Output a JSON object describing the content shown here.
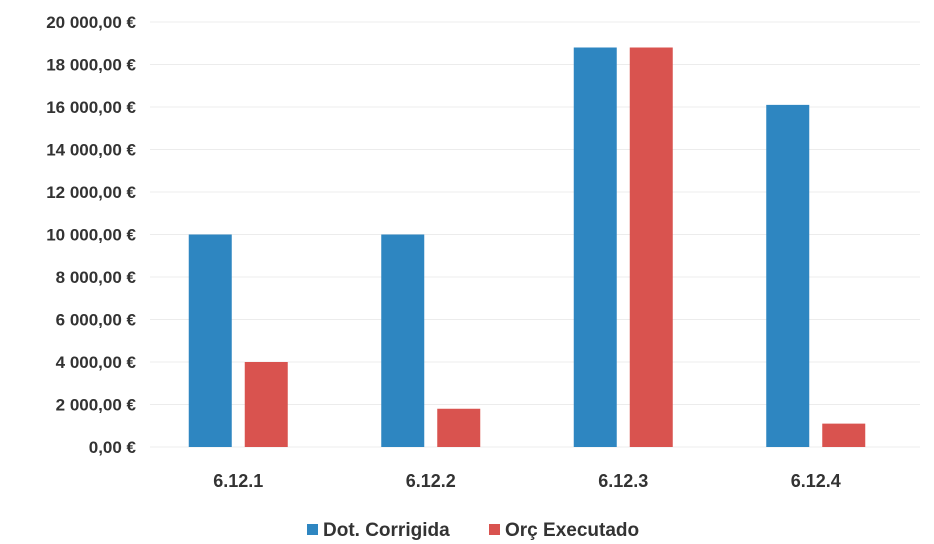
{
  "chart_data": {
    "type": "bar",
    "title": "",
    "xlabel": "",
    "ylabel": "",
    "categories": [
      "6.12.1",
      "6.12.2",
      "6.12.3",
      "6.12.4"
    ],
    "series": [
      {
        "name": "Dot. Corrigida",
        "color": "#2E86C1",
        "values": [
          10000,
          10000,
          18800,
          16100
        ]
      },
      {
        "name": "Orç Executado",
        "color": "#D9534F",
        "values": [
          4000,
          1800,
          18800,
          1100
        ]
      }
    ],
    "ylim": [
      0,
      20000
    ],
    "yticks": [
      0,
      2000,
      4000,
      6000,
      8000,
      10000,
      12000,
      14000,
      16000,
      18000,
      20000
    ],
    "ytick_labels": [
      "0,00 €",
      "2 000,00 €",
      "4 000,00 €",
      "6 000,00 €",
      "8 000,00 €",
      "10 000,00 €",
      "12 000,00 €",
      "14 000,00 €",
      "16 000,00 €",
      "18 000,00 €",
      "20 000,00 €"
    ],
    "grid": true,
    "legend_position": "bottom"
  }
}
